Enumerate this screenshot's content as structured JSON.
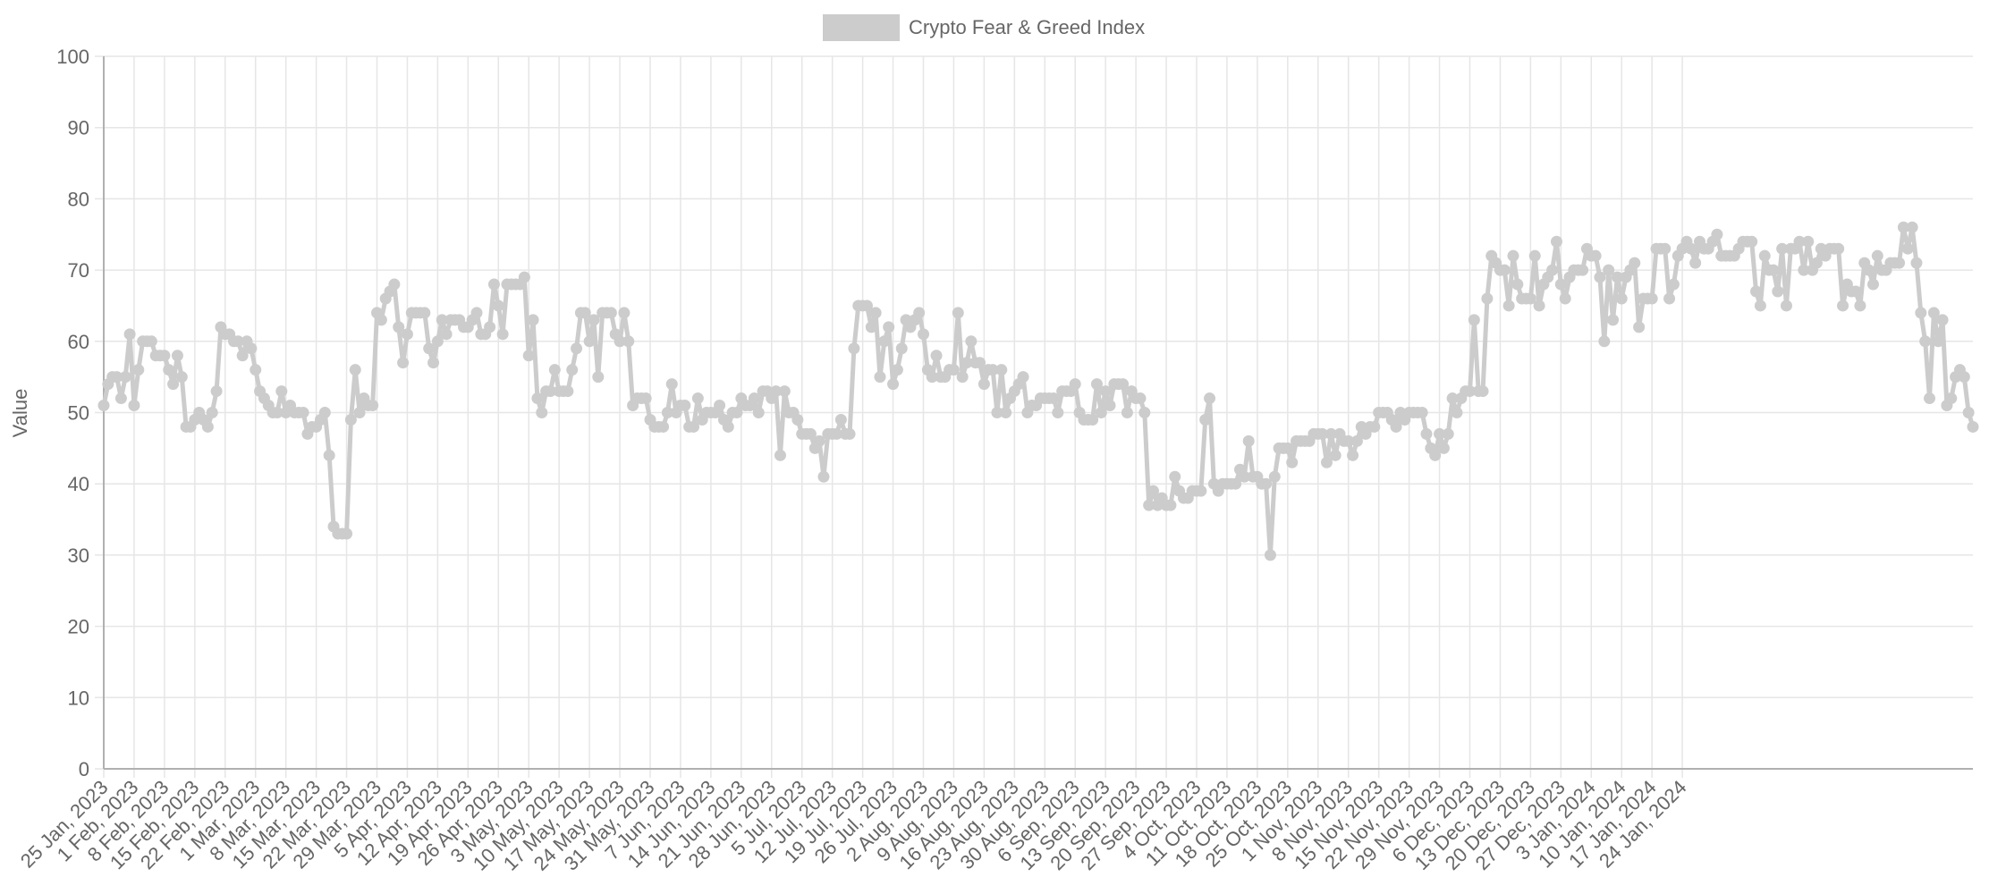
{
  "chart_data": {
    "type": "line",
    "title": "",
    "xlabel": "",
    "ylabel": "Value",
    "ylim": [
      0,
      100
    ],
    "yticks": [
      0,
      10,
      20,
      30,
      40,
      50,
      60,
      70,
      80,
      90,
      100
    ],
    "grid": true,
    "legend_position": "top-center",
    "x_start": "2023-01-25",
    "x_tick_labels": [
      "25 Jan, 2023",
      "1 Feb, 2023",
      "8 Feb, 2023",
      "15 Feb, 2023",
      "22 Feb, 2023",
      "1 Mar, 2023",
      "8 Mar, 2023",
      "15 Mar, 2023",
      "22 Mar, 2023",
      "29 Mar, 2023",
      "5 Apr, 2023",
      "12 Apr, 2023",
      "19 Apr, 2023",
      "26 Apr, 2023",
      "3 May, 2023",
      "10 May, 2023",
      "17 May, 2023",
      "24 May, 2023",
      "31 May, 2023",
      "7 Jun, 2023",
      "14 Jun, 2023",
      "21 Jun, 2023",
      "28 Jun, 2023",
      "5 Jul, 2023",
      "12 Jul, 2023",
      "19 Jul, 2023",
      "26 Jul, 2023",
      "2 Aug, 2023",
      "9 Aug, 2023",
      "16 Aug, 2023",
      "23 Aug, 2023",
      "30 Aug, 2023",
      "6 Sep, 2023",
      "13 Sep, 2023",
      "20 Sep, 2023",
      "27 Sep, 2023",
      "4 Oct, 2023",
      "11 Oct, 2023",
      "18 Oct, 2023",
      "25 Oct, 2023",
      "1 Nov, 2023",
      "8 Nov, 2023",
      "15 Nov, 2023",
      "22 Nov, 2023",
      "29 Nov, 2023",
      "6 Dec, 2023",
      "13 Dec, 2023",
      "20 Dec, 2023",
      "27 Dec, 2023",
      "3 Jan, 2024",
      "10 Jan, 2024",
      "17 Jan, 2024",
      "24 Jan, 2024"
    ],
    "series": [
      {
        "name": "Crypto Fear & Greed Index",
        "color": "#cccccc",
        "values": [
          51,
          54,
          55,
          55,
          52,
          55,
          61,
          51,
          56,
          60,
          60,
          60,
          58,
          58,
          58,
          56,
          54,
          58,
          55,
          48,
          48,
          49,
          50,
          49,
          48,
          50,
          53,
          62,
          61,
          61,
          60,
          60,
          58,
          60,
          59,
          56,
          53,
          52,
          51,
          50,
          50,
          53,
          50,
          51,
          50,
          50,
          50,
          47,
          48,
          48,
          49,
          50,
          44,
          34,
          33,
          33,
          33,
          49,
          56,
          50,
          52,
          51,
          51,
          64,
          63,
          66,
          67,
          68,
          62,
          57,
          61,
          64,
          64,
          64,
          64,
          59,
          57,
          60,
          63,
          61,
          63,
          63,
          63,
          62,
          62,
          63,
          64,
          61,
          61,
          62,
          68,
          65,
          61,
          68,
          68,
          68,
          68,
          69,
          58,
          63,
          52,
          50,
          53,
          53,
          56,
          53,
          53,
          53,
          56,
          59,
          64,
          64,
          60,
          63,
          55,
          64,
          64,
          64,
          61,
          60,
          64,
          60,
          51,
          52,
          52,
          52,
          49,
          48,
          48,
          48,
          50,
          54,
          50,
          51,
          51,
          48,
          48,
          52,
          49,
          50,
          50,
          50,
          51,
          49,
          48,
          50,
          50,
          52,
          51,
          51,
          52,
          50,
          53,
          53,
          52,
          53,
          44,
          53,
          50,
          50,
          49,
          47,
          47,
          47,
          45,
          46,
          41,
          47,
          47,
          47,
          49,
          47,
          47,
          59,
          65,
          65,
          65,
          62,
          64,
          55,
          60,
          62,
          54,
          56,
          59,
          63,
          62,
          63,
          64,
          61,
          56,
          55,
          58,
          55,
          55,
          56,
          56,
          64,
          55,
          57,
          60,
          57,
          57,
          54,
          56,
          56,
          50,
          56,
          50,
          52,
          53,
          54,
          55,
          50,
          51,
          51,
          52,
          52,
          52,
          52,
          50,
          53,
          53,
          53,
          54,
          50,
          49,
          49,
          49,
          54,
          50,
          53,
          51,
          54,
          54,
          54,
          50,
          53,
          52,
          52,
          50,
          37,
          39,
          37,
          38,
          37,
          37,
          41,
          39,
          38,
          38,
          39,
          39,
          39,
          49,
          52,
          40,
          39,
          40,
          40,
          40,
          40,
          42,
          41,
          46,
          41,
          41,
          40,
          40,
          30,
          41,
          45,
          45,
          45,
          43,
          46,
          46,
          46,
          46,
          47,
          47,
          47,
          43,
          47,
          44,
          47,
          46,
          46,
          44,
          46,
          48,
          47,
          48,
          48,
          50,
          50,
          50,
          49,
          48,
          50,
          49,
          50,
          50,
          50,
          50,
          47,
          45,
          44,
          47,
          45,
          47,
          52,
          50,
          52,
          53,
          53,
          63,
          53,
          53,
          66,
          72,
          71,
          70,
          70,
          65,
          72,
          68,
          66,
          66,
          66,
          72,
          65,
          68,
          69,
          70,
          74,
          68,
          66,
          69,
          70,
          70,
          70,
          73,
          72,
          72,
          69,
          60,
          70,
          63,
          69,
          66,
          69,
          70,
          71,
          62,
          66,
          66,
          66,
          73,
          73,
          73,
          66,
          68,
          72,
          73,
          74,
          73,
          71,
          74,
          73,
          73,
          74,
          75,
          72,
          72,
          72,
          72,
          73,
          74,
          74,
          74,
          67,
          65,
          72,
          70,
          70,
          67,
          73,
          65,
          73,
          73,
          74,
          70,
          74,
          70,
          71,
          73,
          72,
          73,
          73,
          73,
          65,
          68,
          67,
          67,
          65,
          71,
          70,
          68,
          72,
          70,
          70,
          71,
          71,
          71,
          76,
          73,
          76,
          71,
          64,
          60,
          52,
          64,
          60,
          63,
          51,
          52,
          55,
          56,
          55,
          50,
          48
        ]
      }
    ]
  }
}
